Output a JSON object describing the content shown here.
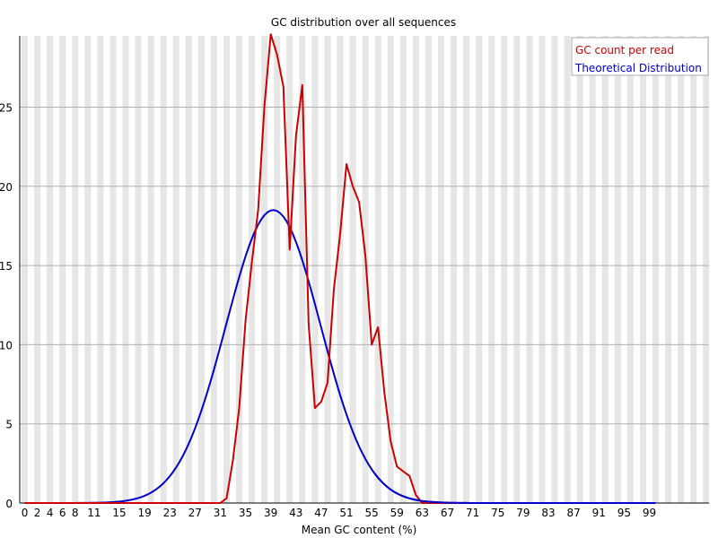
{
  "chart_data": {
    "type": "line",
    "title": "GC distribution over all sequences",
    "xlabel": "Mean GC content (%)",
    "ylabel": "",
    "xlim": [
      0,
      100
    ],
    "ylim": [
      0,
      29.5
    ],
    "x_tick_labels": [
      "0",
      "2",
      "4",
      "6",
      "8",
      "11",
      "15",
      "19",
      "23",
      "27",
      "31",
      "35",
      "39",
      "43",
      "47",
      "51",
      "55",
      "59",
      "63",
      "67",
      "71",
      "75",
      "79",
      "83",
      "87",
      "91",
      "95",
      "99"
    ],
    "y_ticks": [
      0,
      5,
      10,
      15,
      20,
      25
    ],
    "grid": true,
    "legend_position": "top-right",
    "series": [
      {
        "name": "GC count per read",
        "color": "#cc0000",
        "x": [
          0,
          2,
          4,
          6,
          8,
          10,
          12,
          14,
          16,
          18,
          20,
          22,
          24,
          26,
          28,
          30,
          31,
          32,
          33,
          34,
          35,
          36,
          37,
          38,
          39,
          40,
          41,
          42,
          43,
          44,
          45,
          46,
          47,
          48,
          49,
          50,
          51,
          52,
          53,
          54,
          55,
          56,
          57,
          58,
          59,
          60,
          61,
          62,
          63,
          64,
          66,
          68,
          70,
          72,
          74,
          76,
          78,
          80,
          82,
          84,
          86,
          88,
          90,
          92,
          94,
          96,
          98,
          100
        ],
        "values": [
          0,
          0,
          0,
          0,
          0,
          0,
          0,
          0,
          0,
          0,
          0,
          0,
          0,
          0,
          0,
          0,
          0,
          0.3,
          2.7,
          6,
          11.5,
          15.2,
          18.5,
          25.1,
          29.6,
          28.3,
          26.3,
          16,
          23.2,
          26.4,
          11.3,
          6,
          6.4,
          7.6,
          13.5,
          17,
          21.4,
          20,
          19,
          15.6,
          10,
          11.1,
          7,
          3.9,
          2.3,
          2.0,
          1.7,
          0.5,
          0,
          0,
          0,
          0,
          0,
          0,
          0,
          0,
          0,
          0,
          0,
          0,
          0,
          0,
          0,
          0,
          0,
          0,
          0,
          0
        ]
      },
      {
        "name": "Theoretical Distribution",
        "color": "#0000cc",
        "mu": 39.4,
        "sigma": 7.5,
        "peak": 18.5
      }
    ]
  }
}
